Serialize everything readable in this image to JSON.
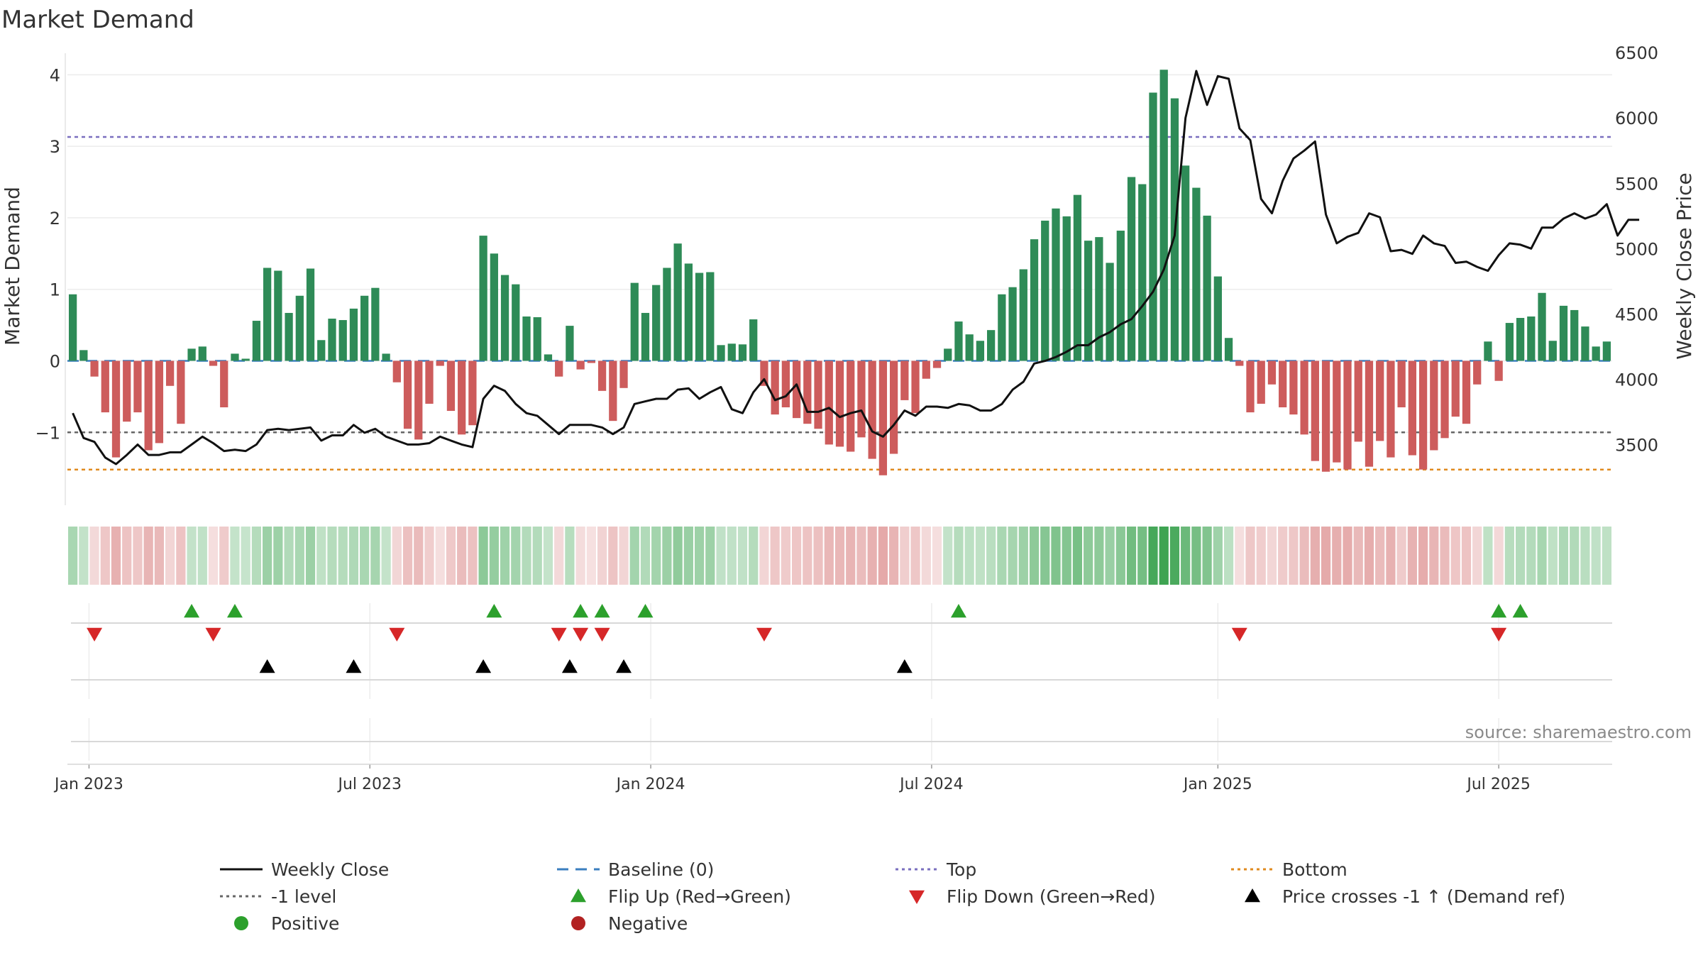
{
  "chart_data": {
    "type": "bar",
    "title": "Market Demand",
    "ylabel": "Market Demand",
    "y2label": "Weekly Close Price",
    "ylim": [
      -1.9,
      4.4
    ],
    "y2lim": [
      3100,
      6550
    ],
    "yticks": [
      "−1",
      "0",
      "1",
      "2",
      "3",
      "4"
    ],
    "y2ticks": [
      3500,
      4000,
      4500,
      5000,
      5500,
      6000,
      6500
    ],
    "xtick_labels": [
      "Jan 2023",
      "Jul 2023",
      "Jan 2024",
      "Jul 2024",
      "Jan 2025",
      "Jul 2025"
    ],
    "xtick_weeks": [
      1.5,
      27.5,
      53.5,
      79.5,
      106,
      132
    ],
    "reference_lines": {
      "top": 3.13,
      "minus_one": -1.0,
      "bottom": -1.52,
      "baseline": 0
    },
    "demand": [
      0.93,
      0.15,
      -0.22,
      -0.72,
      -1.35,
      -0.85,
      -0.72,
      -1.25,
      -1.15,
      -0.35,
      -0.88,
      0.17,
      0.2,
      -0.07,
      -0.65,
      0.1,
      0.03,
      0.56,
      1.3,
      1.26,
      0.67,
      0.91,
      1.29,
      0.29,
      0.59,
      0.57,
      0.73,
      0.91,
      1.02,
      0.1,
      -0.3,
      -0.95,
      -1.1,
      -0.6,
      -0.07,
      -0.7,
      -1.03,
      -0.9,
      1.75,
      1.5,
      1.2,
      1.07,
      0.62,
      0.61,
      0.09,
      -0.22,
      0.49,
      -0.12,
      -0.03,
      -0.42,
      -0.84,
      -0.38,
      1.09,
      0.67,
      1.06,
      1.3,
      1.64,
      1.36,
      1.23,
      1.24,
      0.22,
      0.24,
      0.23,
      0.58,
      -0.35,
      -0.75,
      -0.65,
      -0.8,
      -0.88,
      -0.95,
      -1.17,
      -1.2,
      -1.27,
      -1.07,
      -1.37,
      -1.6,
      -1.3,
      -0.55,
      -0.73,
      -0.25,
      -0.1,
      0.17,
      0.55,
      0.37,
      0.28,
      0.43,
      0.93,
      1.03,
      1.28,
      1.7,
      1.96,
      2.13,
      2.02,
      2.32,
      1.68,
      1.73,
      1.37,
      1.82,
      2.57,
      2.47,
      3.75,
      4.07,
      3.67,
      2.73,
      2.42,
      2.03,
      1.18,
      0.32,
      -0.07,
      -0.72,
      -0.6,
      -0.33,
      -0.65,
      -0.75,
      -1.03,
      -1.4,
      -1.55,
      -1.42,
      -1.52,
      -1.13,
      -1.48,
      -1.12,
      -1.35,
      -0.65,
      -1.32,
      -1.52,
      -1.25,
      -1.08,
      -0.78,
      -0.88,
      -0.33,
      0.27,
      -0.28,
      0.53,
      0.6,
      0.62,
      0.95,
      0.28,
      0.77,
      0.71,
      0.48,
      0.2,
      0.27
    ],
    "weekly_close": [
      3740,
      3550,
      3520,
      3400,
      3350,
      3420,
      3500,
      3420,
      3420,
      3440,
      3440,
      3500,
      3560,
      3510,
      3450,
      3460,
      3450,
      3500,
      3610,
      3620,
      3610,
      3620,
      3630,
      3530,
      3570,
      3570,
      3650,
      3590,
      3620,
      3560,
      3530,
      3500,
      3500,
      3510,
      3560,
      3530,
      3500,
      3480,
      3850,
      3950,
      3910,
      3810,
      3740,
      3720,
      3650,
      3580,
      3650,
      3650,
      3650,
      3630,
      3580,
      3630,
      3810,
      3830,
      3850,
      3850,
      3920,
      3930,
      3850,
      3900,
      3940,
      3770,
      3740,
      3900,
      4000,
      3840,
      3870,
      3960,
      3750,
      3750,
      3780,
      3710,
      3740,
      3760,
      3600,
      3560,
      3650,
      3760,
      3720,
      3790,
      3790,
      3780,
      3810,
      3800,
      3760,
      3760,
      3810,
      3920,
      3980,
      4120,
      4140,
      4170,
      4210,
      4260,
      4260,
      4320,
      4360,
      4420,
      4460,
      4560,
      4670,
      4840,
      5100,
      6000,
      6360,
      6100,
      6320,
      6300,
      5920,
      5830,
      5380,
      5270,
      5520,
      5690,
      5750,
      5820,
      5260,
      5040,
      5090,
      5120,
      5270,
      5240,
      4980,
      4990,
      4960,
      5100,
      5040,
      5020,
      4890,
      4900,
      4860,
      4830,
      4950,
      5040,
      5030,
      5000,
      5160,
      5160,
      5230,
      5270,
      5230,
      5260,
      5340,
      5100,
      5220,
      5220
    ],
    "flip_up_weeks": [
      11,
      15,
      39,
      47,
      49,
      53,
      82,
      132,
      134
    ],
    "flip_down_weeks": [
      2,
      13,
      30,
      45,
      47,
      49,
      64,
      108,
      132
    ],
    "price_cross_weeks": [
      18,
      26,
      38,
      46,
      51,
      77
    ]
  },
  "source_text": "source: sharemaestro.com",
  "legend": [
    {
      "label": "Weekly Close",
      "kind": "line",
      "color": "#111111"
    },
    {
      "label": "Baseline (0)",
      "kind": "dash",
      "color": "#3a7ebf"
    },
    {
      "label": "Top",
      "kind": "dot",
      "color": "#7a6fbf"
    },
    {
      "label": "Bottom",
      "kind": "dot",
      "color": "#e08a1e"
    },
    {
      "label": "-1 level",
      "kind": "dot",
      "color": "#666666"
    },
    {
      "label": "Flip Up (Red→Green)",
      "kind": "tri-up",
      "color": "#2ca02c"
    },
    {
      "label": "Flip Down (Green→Red)",
      "kind": "tri-down",
      "color": "#d62728"
    },
    {
      "label": "Price crosses -1 ↑ (Demand ref)",
      "kind": "tri-up",
      "color": "#000000"
    },
    {
      "label": "Positive",
      "kind": "circle",
      "color": "#2ca02c"
    },
    {
      "label": "Negative",
      "kind": "circle",
      "color": "#b22222"
    }
  ],
  "colors": {
    "positive_bar": "#2e8b57",
    "negative_bar": "#cd5c5c",
    "price_line": "#111111",
    "flip_up": "#2ca02c",
    "flip_down": "#d62728",
    "price_cross": "#000000"
  }
}
